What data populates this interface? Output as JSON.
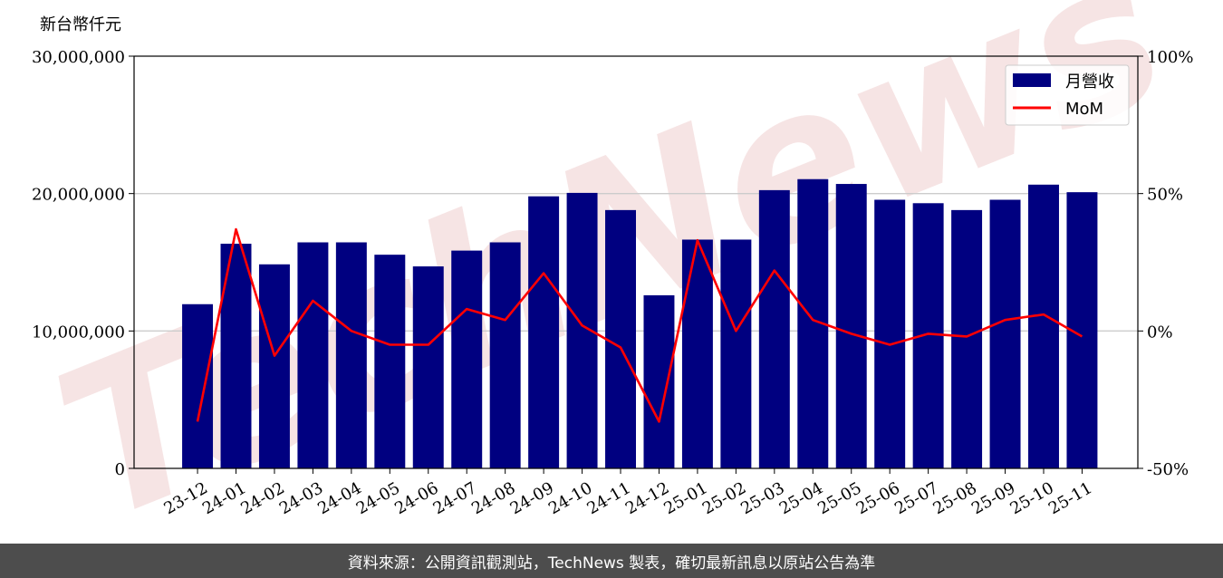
{
  "watermark": "TechNews",
  "footer": {
    "text": "資料來源：公開資訊觀測站，TechNews 製表，確切最新訊息以原站公告為準"
  },
  "colors": {
    "bar": "#000080",
    "line": "#ff0000",
    "grid": "#cccccc",
    "footer_bg": "#4d4d4d",
    "watermark": "#f2d5d5"
  },
  "chart_data": {
    "type": "bar",
    "title": "",
    "y_unit_label": "新台幣仟元",
    "categories": [
      "23-12",
      "24-01",
      "24-02",
      "24-03",
      "24-04",
      "24-05",
      "24-06",
      "24-07",
      "24-08",
      "24-09",
      "24-10",
      "24-11",
      "24-12",
      "25-01",
      "25-02",
      "25-03",
      "25-04",
      "25-05",
      "25-06",
      "25-07",
      "25-08",
      "25-09",
      "25-10",
      "25-11"
    ],
    "series": [
      {
        "name": "月營收",
        "type": "bar",
        "axis": "left",
        "values": [
          11950000,
          16350000,
          14850000,
          16450000,
          16450000,
          15550000,
          14700000,
          15850000,
          16450000,
          19800000,
          20050000,
          18800000,
          12600000,
          16650000,
          16650000,
          20250000,
          21050000,
          20700000,
          19550000,
          19300000,
          18800000,
          19550000,
          20650000,
          20100000
        ]
      },
      {
        "name": "MoM",
        "type": "line",
        "axis": "right",
        "values": [
          -33,
          37,
          -9,
          11,
          0,
          -5,
          -5,
          8,
          4,
          21,
          2,
          -6,
          -33,
          33,
          0,
          22,
          4,
          -1,
          -5,
          -1,
          -2,
          4,
          6,
          -2
        ]
      }
    ],
    "y_left": {
      "lim": [
        0,
        30000000
      ],
      "ticks": [
        0,
        10000000,
        20000000,
        30000000
      ],
      "tick_labels": [
        "0",
        "10,000,000",
        "20,000,000",
        "30,000,000"
      ]
    },
    "y_right": {
      "lim": [
        -50,
        100
      ],
      "ticks": [
        -50,
        0,
        50,
        100
      ],
      "tick_labels": [
        "-50%",
        "0%",
        "50%",
        "100%"
      ]
    },
    "grid": true,
    "legend": {
      "position": "top-right",
      "entries": [
        "月營收",
        "MoM"
      ]
    }
  }
}
